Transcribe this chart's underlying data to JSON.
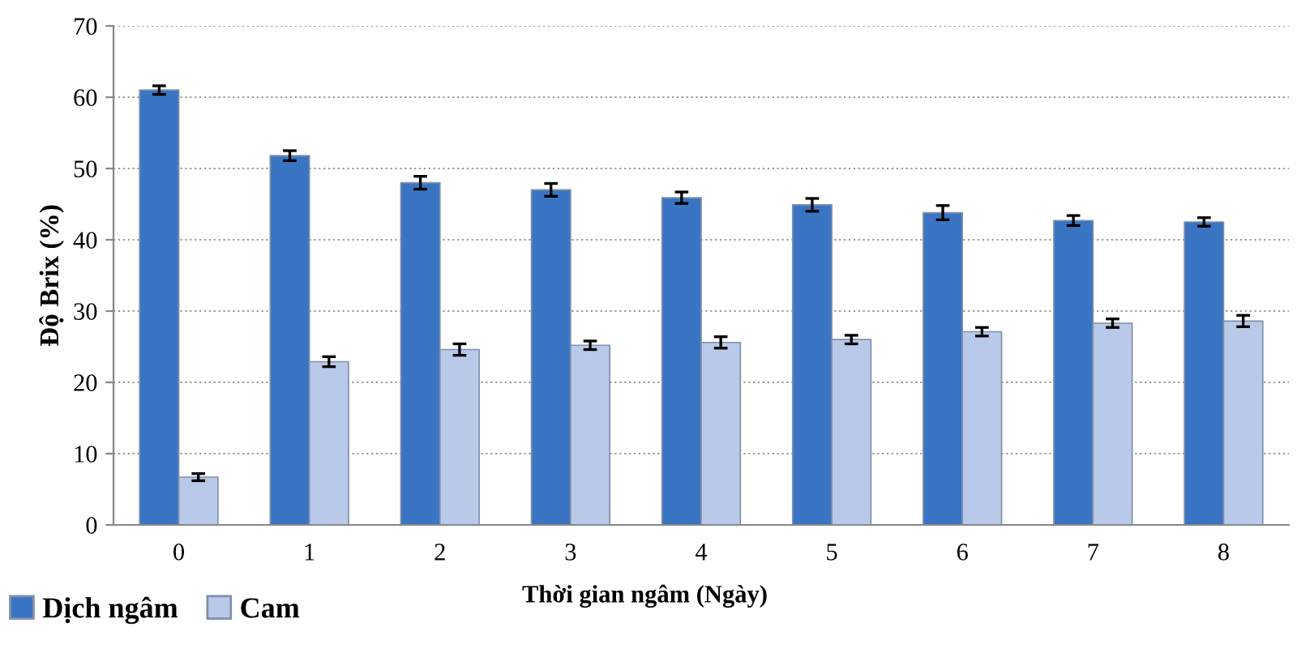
{
  "chart_data": {
    "type": "bar",
    "xlabel": "Thời gian ngâm (Ngày)",
    "ylabel": "Độ Brix (%)",
    "categories": [
      "0",
      "1",
      "2",
      "3",
      "4",
      "5",
      "6",
      "7",
      "8"
    ],
    "series": [
      {
        "name": "Dịch ngâm",
        "color": "#3a75c4",
        "values": [
          61,
          51.8,
          48,
          47,
          45.9,
          44.9,
          43.8,
          42.7,
          42.5
        ],
        "errors": [
          0.6,
          0.7,
          0.9,
          0.9,
          0.8,
          0.9,
          1,
          0.7,
          0.6
        ]
      },
      {
        "name": "Cam",
        "color": "#b9c9ea",
        "values": [
          6.7,
          22.9,
          24.6,
          25.2,
          25.6,
          26,
          27.1,
          28.3,
          28.6
        ],
        "errors": [
          0.5,
          0.7,
          0.8,
          0.6,
          0.8,
          0.6,
          0.6,
          0.6,
          0.8
        ]
      }
    ],
    "ylim": [
      0,
      70
    ],
    "yticks": [
      0,
      10,
      20,
      30,
      40,
      50,
      60,
      70
    ],
    "grid": "y",
    "legend": "bottom left"
  }
}
